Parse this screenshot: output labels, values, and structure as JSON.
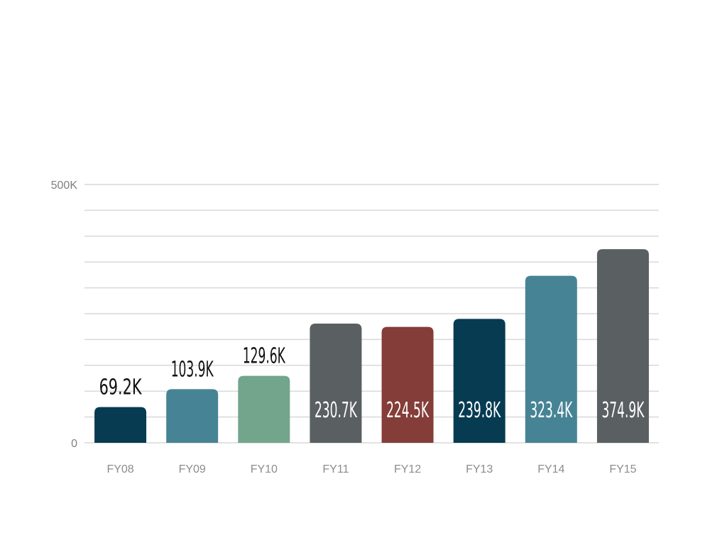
{
  "chart_data": {
    "type": "bar",
    "title": "",
    "xlabel": "",
    "ylabel": "",
    "ylim": [
      0,
      500000
    ],
    "yticks": [
      {
        "value": 0,
        "label": "0"
      },
      {
        "value": 500000,
        "label": "500K"
      }
    ],
    "grid": true,
    "grid_step": 50000,
    "categories": [
      "FY08",
      "FY09",
      "FY10",
      "FY11",
      "FY12",
      "FY13",
      "FY14",
      "FY15"
    ],
    "values": [
      69200,
      103900,
      129600,
      230700,
      224500,
      239800,
      323400,
      374900
    ],
    "data_labels": [
      "69.2K",
      "103.9K",
      "129.6K",
      "230.7K",
      "224.5K",
      "239.8K",
      "323.4K",
      "374.9K"
    ],
    "colors": [
      "#063b52",
      "#468495",
      "#72a58c",
      "#5a5f62",
      "#843d39",
      "#063b52",
      "#468495",
      "#5a5f62"
    ]
  }
}
